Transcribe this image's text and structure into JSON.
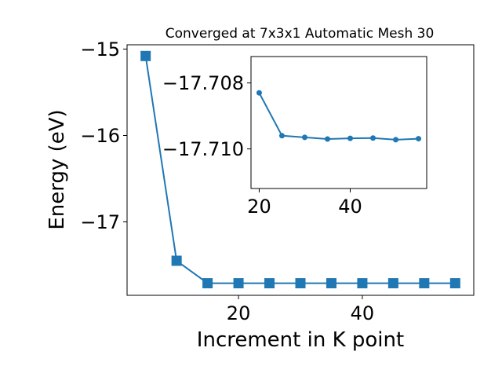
{
  "chart_data": [
    {
      "type": "line",
      "title": "Converged at 7x3x1 Automatic Mesh 30",
      "xlabel": "Increment in K point",
      "ylabel": "Energy (eV)",
      "xlim": [
        2,
        58
      ],
      "ylim": [
        -17.85,
        -14.95
      ],
      "xticks": [
        20,
        40
      ],
      "xtick_labels": [
        "20",
        "40"
      ],
      "yticks": [
        -17,
        -16,
        -15
      ],
      "ytick_labels": [
        "−17",
        "−16",
        "−15"
      ],
      "grid": false,
      "marker": "square",
      "color": "#1f77b4",
      "series": [
        {
          "x": [
            5,
            10,
            15,
            20,
            25,
            30,
            35,
            40,
            45,
            50,
            55
          ],
          "y": [
            -15.08,
            -17.45,
            -17.71,
            -17.71,
            -17.71,
            -17.71,
            -17.71,
            -17.71,
            -17.71,
            -17.71,
            -17.71
          ]
        }
      ]
    },
    {
      "type": "line",
      "title": "",
      "xlabel": "",
      "ylabel": "",
      "xlim": [
        18.2,
        56.8
      ],
      "ylim": [
        -17.7112,
        -17.7072
      ],
      "xticks": [
        20,
        40
      ],
      "xtick_labels": [
        "20",
        "40"
      ],
      "yticks": [
        -17.71,
        -17.708
      ],
      "ytick_labels": [
        "−17.710",
        "−17.708"
      ],
      "grid": false,
      "marker": "circle",
      "color": "#1f77b4",
      "series": [
        {
          "x": [
            20,
            25,
            30,
            35,
            40,
            45,
            50,
            55
          ],
          "y": [
            -17.7083,
            -17.7096,
            -17.70965,
            -17.7097,
            -17.70968,
            -17.70967,
            -17.70972,
            -17.70969
          ]
        }
      ]
    }
  ]
}
